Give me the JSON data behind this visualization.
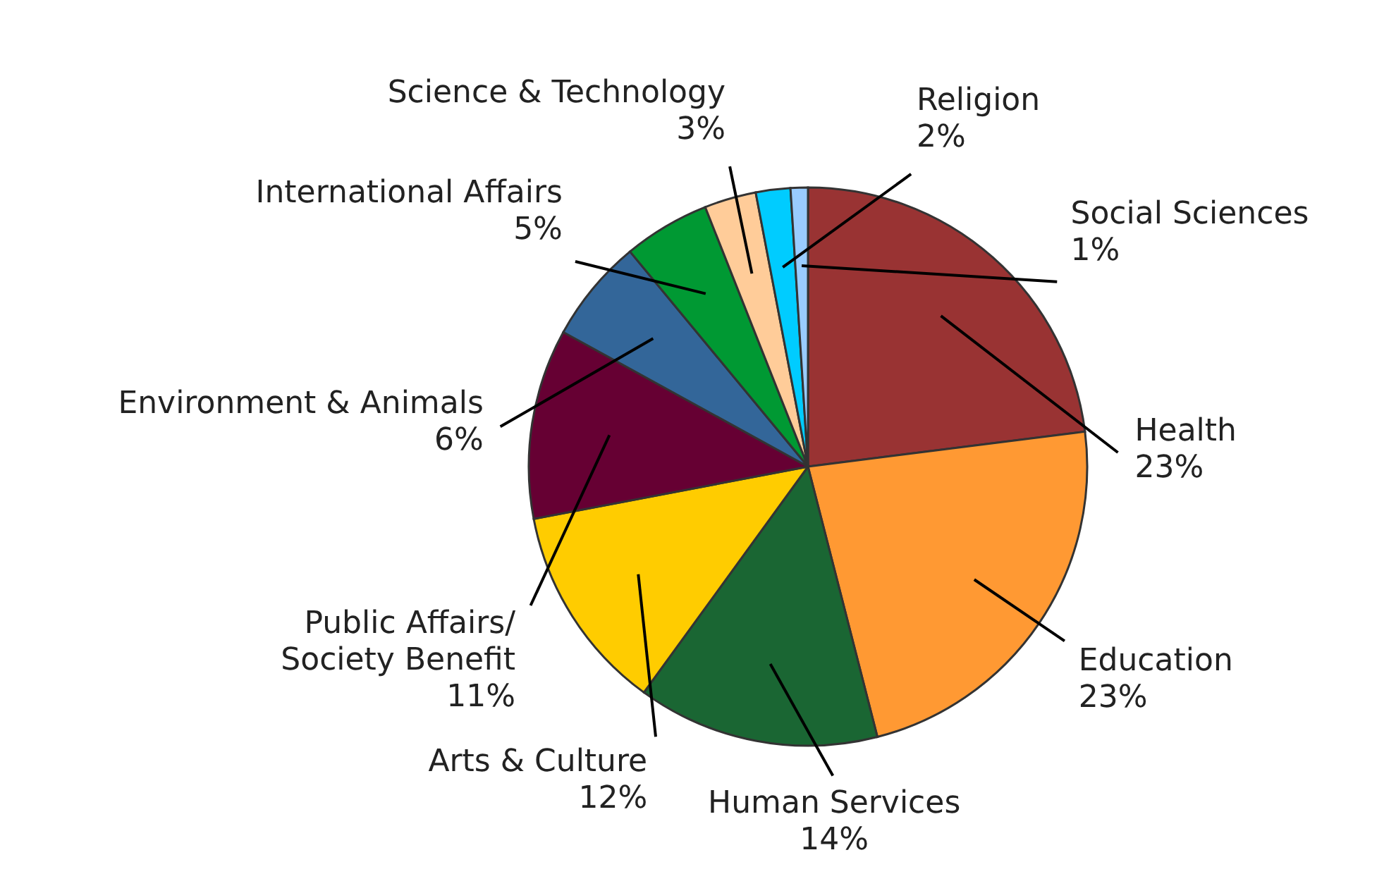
{
  "chart_data": {
    "type": "pie",
    "categories": [
      "Health",
      "Education",
      "Human Services",
      "Arts & Culture",
      "Public Affairs/\nSociety Benefit",
      "Environment & Animals",
      "International Affairs",
      "Science & Technology",
      "Religion",
      "Social Sciences"
    ],
    "values": [
      23,
      23,
      14,
      12,
      11,
      6,
      5,
      3,
      2,
      1
    ],
    "value_labels": [
      "23%",
      "23%",
      "14%",
      "12%",
      "11%",
      "6%",
      "5%",
      "3%",
      "2%",
      "1%"
    ],
    "colors": [
      "#993333",
      "#ff9933",
      "#1a6633",
      "#ffcc00",
      "#660033",
      "#336699",
      "#009933",
      "#ffcc99",
      "#00ccff",
      "#99ccff"
    ]
  }
}
